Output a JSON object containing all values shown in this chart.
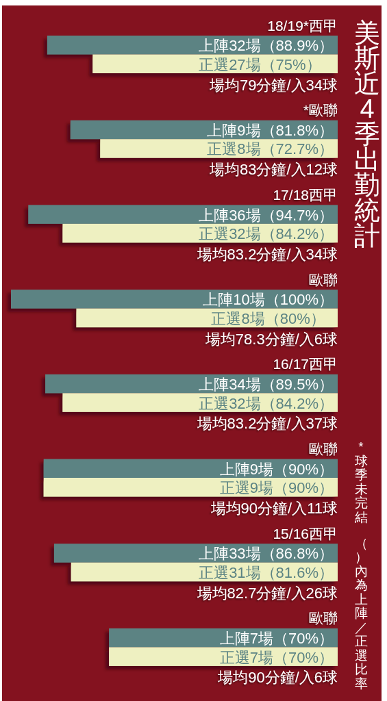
{
  "chart_data": [
    {
      "type": "other",
      "title": "美斯近4季出勤統計",
      "annotations": [
        "*球季未完結",
        "（）內為上陣／正選比率"
      ]
    },
    {
      "type": "bar",
      "orientation": "horizontal",
      "title": "18/19*西甲",
      "categories": [
        "上陣32場",
        "正選27場"
      ],
      "values": [
        88.9,
        75
      ],
      "colors": [
        "#5b8383",
        "#eef0c1"
      ],
      "value_labels": [
        "（88.9%）",
        "（75%）"
      ],
      "annotations": [
        "場均79分鐘/入34球"
      ]
    },
    {
      "type": "bar",
      "orientation": "horizontal",
      "title": "*歐聯",
      "categories": [
        "上陣9場",
        "正選8場"
      ],
      "values": [
        81.8,
        72.7
      ],
      "colors": [
        "#5b8383",
        "#eef0c1"
      ],
      "value_labels": [
        "（81.8%）",
        "（72.7%）"
      ],
      "annotations": [
        "場均83分鐘/入12球"
      ]
    },
    {
      "type": "bar",
      "orientation": "horizontal",
      "title": "17/18西甲",
      "categories": [
        "上陣36場",
        "正選32場"
      ],
      "values": [
        94.7,
        84.2
      ],
      "colors": [
        "#5b8383",
        "#eef0c1"
      ],
      "value_labels": [
        "（94.7%）",
        "（84.2%）"
      ],
      "annotations": [
        "場均83.2分鐘/入34球"
      ]
    },
    {
      "type": "bar",
      "orientation": "horizontal",
      "title": "歐聯",
      "categories": [
        "上陣10場",
        "正選8場"
      ],
      "values": [
        100,
        80
      ],
      "colors": [
        "#5b8383",
        "#eef0c1"
      ],
      "value_labels": [
        "（100%）",
        "（80%）"
      ],
      "annotations": [
        "場均78.3分鐘/入6球"
      ]
    },
    {
      "type": "bar",
      "orientation": "horizontal",
      "title": "16/17西甲",
      "categories": [
        "上陣34場",
        "正選32場"
      ],
      "values": [
        89.5,
        84.2
      ],
      "colors": [
        "#5b8383",
        "#eef0c1"
      ],
      "value_labels": [
        "（89.5%）",
        "（84.2%）"
      ],
      "annotations": [
        "場均83.2分鐘/入37球"
      ]
    },
    {
      "type": "bar",
      "orientation": "horizontal",
      "title": "歐聯",
      "categories": [
        "上陣9場",
        "正選9場"
      ],
      "values": [
        90,
        90
      ],
      "colors": [
        "#5b8383",
        "#eef0c1"
      ],
      "value_labels": [
        "（90%）",
        "（90%）"
      ],
      "annotations": [
        "場均90分鐘/入11球"
      ]
    },
    {
      "type": "bar",
      "orientation": "horizontal",
      "title": "15/16西甲",
      "categories": [
        "上陣33場",
        "正選31場"
      ],
      "values": [
        86.8,
        81.6
      ],
      "colors": [
        "#5b8383",
        "#eef0c1"
      ],
      "value_labels": [
        "（86.8%）",
        "（81.6%）"
      ],
      "annotations": [
        "場均82.7分鐘/入26球"
      ]
    },
    {
      "type": "bar",
      "orientation": "horizontal",
      "title": "歐聯",
      "categories": [
        "上陣7場",
        "正選7場"
      ],
      "values": [
        70,
        70
      ],
      "colors": [
        "#5b8383",
        "#eef0c1"
      ],
      "value_labels": [
        "（70%）",
        "（70%）"
      ],
      "annotations": [
        "場均90分鐘/入6球"
      ]
    }
  ]
}
